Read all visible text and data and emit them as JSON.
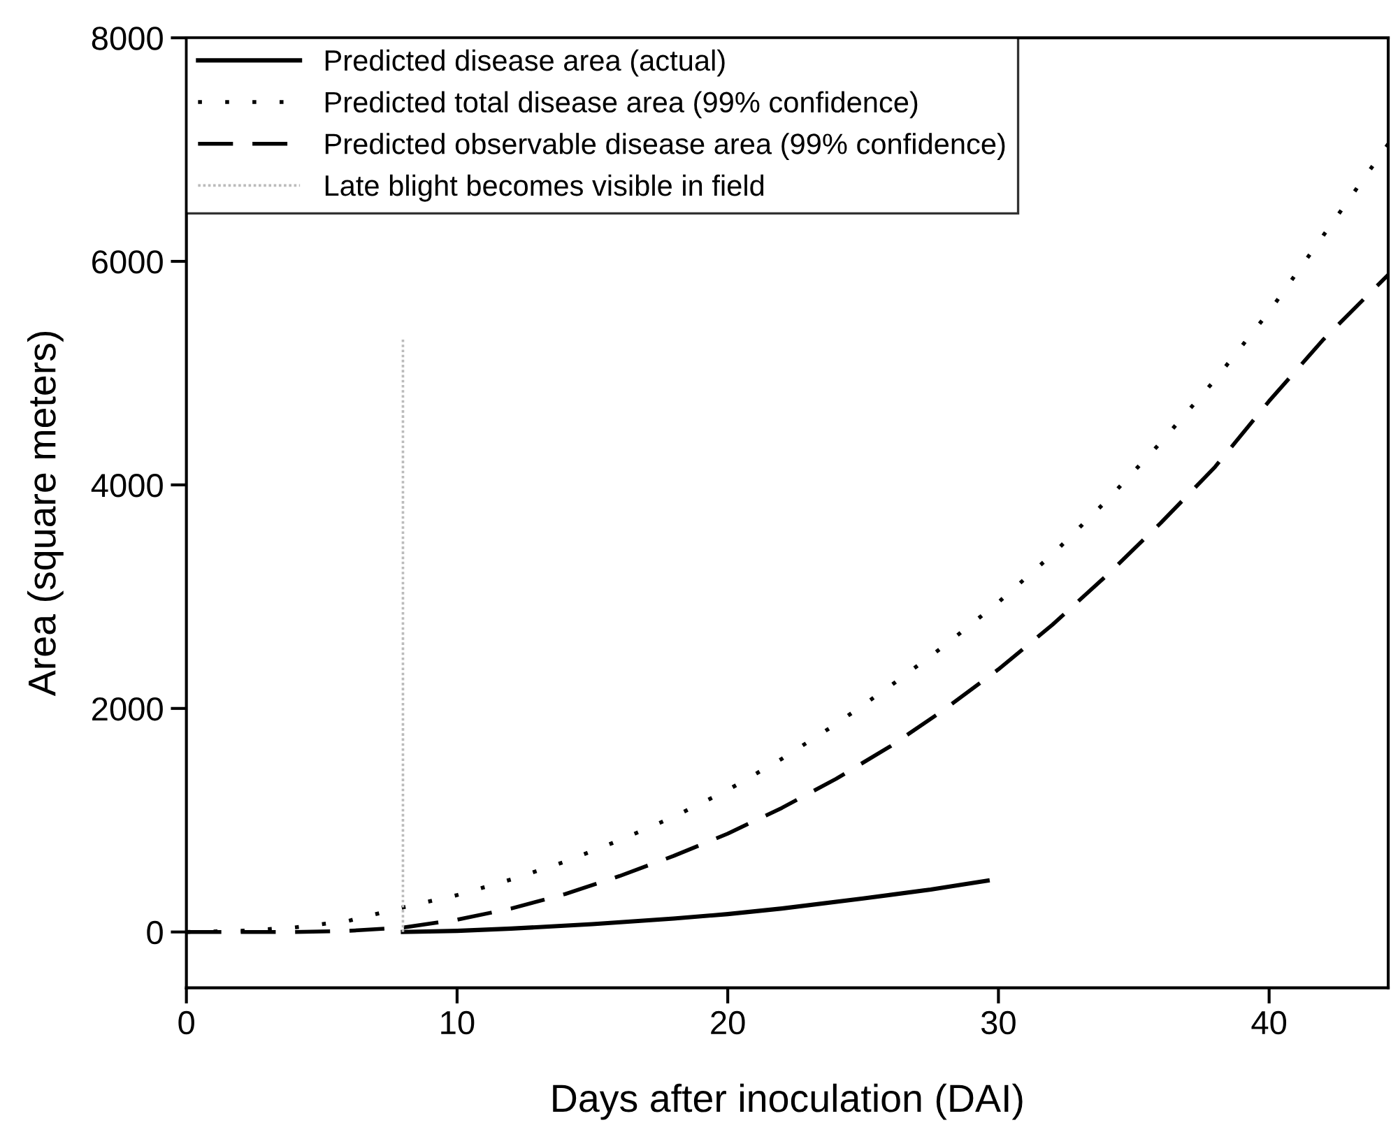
{
  "chart_data": {
    "type": "line",
    "xlabel": "Days after inoculation (DAI)",
    "ylabel": "Area (square meters)",
    "xlim": [
      0,
      44.4
    ],
    "xticks": [
      0,
      10,
      20,
      30,
      40
    ],
    "ylim": [
      -500,
      8000
    ],
    "yticks": [
      0,
      2000,
      4000,
      6000,
      8000
    ],
    "grid": false,
    "legend": "top left",
    "series": [
      {
        "name": "Predicted disease area (actual)",
        "color": "#000000",
        "line_style": "solid",
        "x": [
          8,
          10,
          12,
          15,
          18,
          20,
          22,
          25,
          27.5,
          29.6
        ],
        "values": [
          0,
          10,
          30,
          70,
          120,
          160,
          210,
          300,
          380,
          460
        ]
      },
      {
        "name": "Predicted total disease area (99% confidence)",
        "color": "#000000",
        "line_style": "dotted",
        "x": [
          0,
          2,
          4,
          6,
          8,
          10,
          12,
          14,
          16,
          18,
          20,
          22,
          24,
          26,
          28,
          30,
          32,
          34,
          36,
          38,
          40,
          42,
          44.4
        ],
        "values": [
          0,
          10,
          40,
          100,
          220,
          330,
          470,
          630,
          820,
          1030,
          1270,
          1550,
          1860,
          2200,
          2560,
          2950,
          3380,
          3860,
          4380,
          4940,
          5550,
          6230,
          7050
        ]
      },
      {
        "name": "Predicted observable disease area (99% confidence)",
        "color": "#000000",
        "line_style": "dashed",
        "x": [
          0,
          4,
          6,
          8,
          10,
          12,
          14,
          16,
          18,
          20,
          22,
          24,
          26,
          28,
          30,
          32,
          34,
          36,
          38,
          40,
          42,
          44.4
        ],
        "values": [
          0,
          0,
          10,
          40,
          110,
          210,
          340,
          500,
          680,
          880,
          1110,
          1370,
          1660,
          1990,
          2350,
          2750,
          3190,
          3660,
          4160,
          4750,
          5300,
          5880
        ]
      },
      {
        "name": "Late blight becomes visible in field",
        "color": "#bbbbbb",
        "line_style": "dotted",
        "x": [
          8,
          8
        ],
        "values": [
          5300,
          0
        ]
      }
    ]
  }
}
